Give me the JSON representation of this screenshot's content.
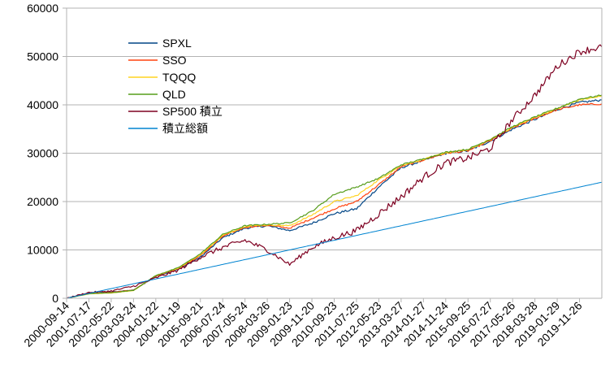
{
  "chart_data": {
    "type": "line",
    "title": "",
    "xlabel": "",
    "ylabel": "",
    "ylim": [
      0,
      60000
    ],
    "y_ticks": [
      0,
      10000,
      20000,
      30000,
      40000,
      50000,
      60000
    ],
    "grid": "horizontal",
    "legend_position": "top-left",
    "x_tick_labels": [
      "2000-09-14",
      "2001-07-17",
      "2002-05-22",
      "2003-03-24",
      "2004-01-22",
      "2004-11-19",
      "2005-09-21",
      "2006-07-24",
      "2007-05-24",
      "2008-03-26",
      "2009-01-23",
      "2009-11-20",
      "2010-09-23",
      "2011-07-25",
      "2012-05-23",
      "2013-03-27",
      "2014-01-27",
      "2014-11-24",
      "2015-09-25",
      "2016-07-27",
      "2017-05-26",
      "2018-03-28",
      "2019-01-29",
      "2019-11-26"
    ],
    "x": [
      "2000-09-14",
      "2001-07-17",
      "2002-05-22",
      "2003-03-24",
      "2004-01-22",
      "2004-11-19",
      "2005-09-21",
      "2006-07-24",
      "2007-05-24",
      "2008-03-26",
      "2009-01-23",
      "2009-11-20",
      "2010-09-23",
      "2011-07-25",
      "2012-05-23",
      "2013-03-27",
      "2014-01-27",
      "2014-11-24",
      "2015-09-25",
      "2016-07-27",
      "2017-05-26",
      "2018-03-28",
      "2019-01-29",
      "2019-11-26",
      "2020-05-15"
    ],
    "series": [
      {
        "name": "SPXL",
        "color": "#004586",
        "values": [
          0,
          1100,
          1300,
          1700,
          4500,
          6000,
          8500,
          12500,
          14500,
          15000,
          14000,
          15500,
          17500,
          18500,
          23000,
          27000,
          28500,
          30000,
          30500,
          32500,
          35000,
          37000,
          39000,
          40500,
          41000
        ]
      },
      {
        "name": "SSO",
        "color": "#ff420e",
        "values": [
          0,
          1000,
          1250,
          1700,
          4600,
          6100,
          8800,
          12800,
          14700,
          15100,
          14500,
          16500,
          18500,
          20000,
          23500,
          27200,
          28600,
          30000,
          30500,
          32600,
          35200,
          37200,
          39000,
          40000,
          40200
        ]
      },
      {
        "name": "TQQQ",
        "color": "#ffd320",
        "values": [
          0,
          900,
          1100,
          1600,
          4700,
          6200,
          9000,
          13000,
          14900,
          15200,
          15000,
          17200,
          20000,
          21200,
          24500,
          27500,
          28700,
          30100,
          30700,
          32800,
          35400,
          37400,
          39200,
          41000,
          41800
        ]
      },
      {
        "name": "QLD",
        "color": "#579d1c",
        "values": [
          0,
          950,
          1150,
          1650,
          4700,
          6300,
          9200,
          13200,
          15000,
          15300,
          15600,
          18000,
          21500,
          23000,
          24800,
          27600,
          28800,
          30200,
          30800,
          32900,
          35500,
          37500,
          39300,
          41200,
          42000
        ]
      },
      {
        "name": "SP500 積立",
        "color": "#7e0021",
        "values": [
          0,
          1200,
          1500,
          2500,
          4200,
          5800,
          8500,
          10500,
          12000,
          10000,
          7000,
          10500,
          12500,
          14000,
          17500,
          21000,
          25000,
          28000,
          29000,
          31000,
          37000,
          42000,
          48000,
          51000,
          52000
        ]
      },
      {
        "name": "積立総額",
        "color": "#0084d1",
        "values": [
          0,
          1000,
          2000,
          3000,
          4000,
          5000,
          6000,
          7000,
          8000,
          9000,
          10000,
          11000,
          12000,
          13000,
          14000,
          15000,
          16000,
          17000,
          18000,
          19000,
          20000,
          21000,
          22000,
          23000,
          24000
        ]
      }
    ]
  }
}
